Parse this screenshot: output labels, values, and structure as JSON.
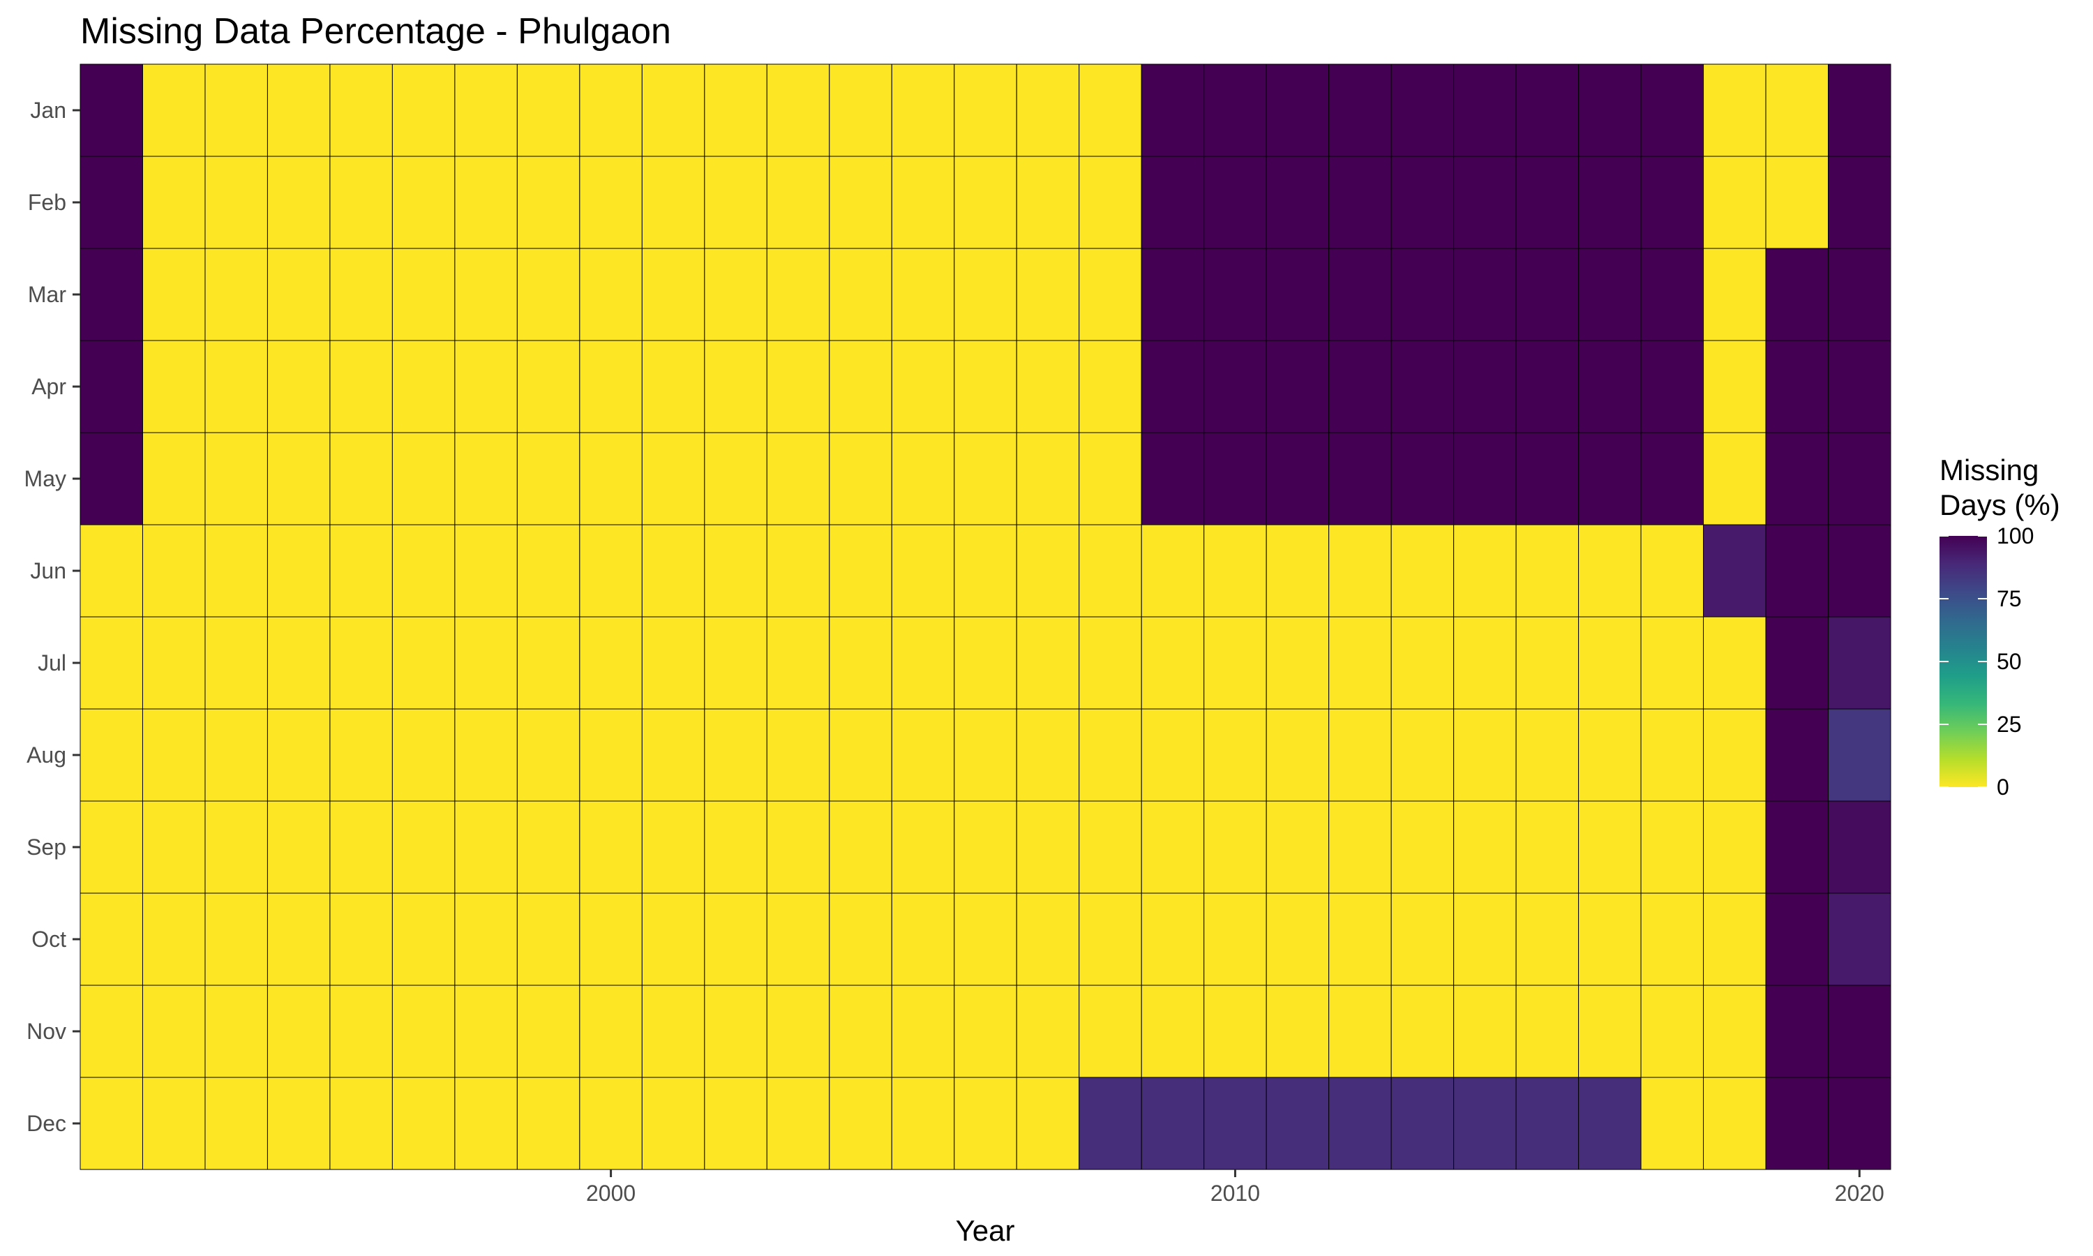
{
  "chart_data": {
    "type": "heatmap",
    "title": "Missing Data Percentage - Phulgaon",
    "xlabel": "Year",
    "ylabel": "",
    "x": [
      1992,
      1993,
      1994,
      1995,
      1996,
      1997,
      1998,
      1999,
      2000,
      2001,
      2002,
      2003,
      2004,
      2005,
      2006,
      2007,
      2008,
      2009,
      2010,
      2011,
      2012,
      2013,
      2014,
      2015,
      2016,
      2017,
      2018,
      2019,
      2020
    ],
    "x_ticks": [
      2000,
      2010,
      2020
    ],
    "y": [
      "Jan",
      "Feb",
      "Mar",
      "Apr",
      "May",
      "Jun",
      "Jul",
      "Aug",
      "Sep",
      "Oct",
      "Nov",
      "Dec"
    ],
    "values": [
      [
        100,
        0,
        0,
        0,
        0,
        0,
        0,
        0,
        0,
        0,
        0,
        0,
        0,
        0,
        0,
        0,
        0,
        100,
        100,
        100,
        100,
        100,
        100,
        100,
        100,
        100,
        0,
        0,
        100
      ],
      [
        100,
        0,
        0,
        0,
        0,
        0,
        0,
        0,
        0,
        0,
        0,
        0,
        0,
        0,
        0,
        0,
        0,
        100,
        100,
        100,
        100,
        100,
        100,
        100,
        100,
        100,
        0,
        0,
        100
      ],
      [
        100,
        0,
        0,
        0,
        0,
        0,
        0,
        0,
        0,
        0,
        0,
        0,
        0,
        0,
        0,
        0,
        0,
        100,
        100,
        100,
        100,
        100,
        100,
        100,
        100,
        100,
        0,
        100,
        100
      ],
      [
        100,
        0,
        0,
        0,
        0,
        0,
        0,
        0,
        0,
        0,
        0,
        0,
        0,
        0,
        0,
        0,
        0,
        100,
        100,
        100,
        100,
        100,
        100,
        100,
        100,
        100,
        0,
        100,
        100
      ],
      [
        100,
        0,
        0,
        0,
        0,
        0,
        0,
        0,
        0,
        0,
        0,
        0,
        0,
        0,
        0,
        0,
        0,
        100,
        100,
        100,
        100,
        100,
        100,
        100,
        100,
        100,
        0,
        100,
        100
      ],
      [
        0,
        0,
        0,
        0,
        0,
        0,
        0,
        0,
        0,
        0,
        0,
        0,
        0,
        0,
        0,
        0,
        0,
        0,
        0,
        0,
        0,
        0,
        0,
        0,
        0,
        0,
        93,
        100,
        100
      ],
      [
        0,
        0,
        0,
        0,
        0,
        0,
        0,
        0,
        0,
        0,
        0,
        0,
        0,
        0,
        0,
        0,
        0,
        0,
        0,
        0,
        0,
        0,
        0,
        0,
        0,
        0,
        0,
        100,
        94
      ],
      [
        0,
        0,
        0,
        0,
        0,
        0,
        0,
        0,
        0,
        0,
        0,
        0,
        0,
        0,
        0,
        0,
        0,
        0,
        0,
        0,
        0,
        0,
        0,
        0,
        0,
        0,
        0,
        100,
        84
      ],
      [
        0,
        0,
        0,
        0,
        0,
        0,
        0,
        0,
        0,
        0,
        0,
        0,
        0,
        0,
        0,
        0,
        0,
        0,
        0,
        0,
        0,
        0,
        0,
        0,
        0,
        0,
        0,
        100,
        97
      ],
      [
        0,
        0,
        0,
        0,
        0,
        0,
        0,
        0,
        0,
        0,
        0,
        0,
        0,
        0,
        0,
        0,
        0,
        0,
        0,
        0,
        0,
        0,
        0,
        0,
        0,
        0,
        0,
        100,
        93
      ],
      [
        0,
        0,
        0,
        0,
        0,
        0,
        0,
        0,
        0,
        0,
        0,
        0,
        0,
        0,
        0,
        0,
        0,
        0,
        0,
        0,
        0,
        0,
        0,
        0,
        0,
        0,
        0,
        100,
        100
      ],
      [
        0,
        0,
        0,
        0,
        0,
        0,
        0,
        0,
        0,
        0,
        0,
        0,
        0,
        0,
        0,
        0,
        87,
        87,
        87,
        87,
        87,
        87,
        87,
        87,
        87,
        0,
        0,
        100,
        100
      ]
    ],
    "legend": {
      "title_lines": [
        "Missing",
        "Days (%)"
      ],
      "ticks": [
        0,
        25,
        50,
        75,
        100
      ],
      "placement": "right"
    },
    "color_scale": "viridis-reversed",
    "colors": [
      "#fde725",
      "#b5de2b",
      "#6ece58",
      "#35b779",
      "#1f9e89",
      "#26828e",
      "#31688e",
      "#3e4989",
      "#482878",
      "#440154"
    ],
    "grid": false
  }
}
